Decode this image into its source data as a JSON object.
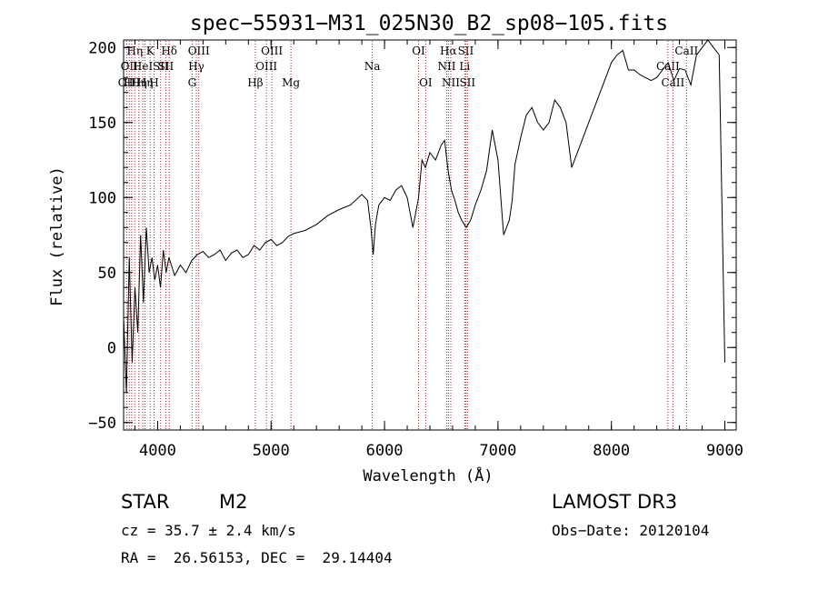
{
  "chart_data": {
    "type": "line",
    "title": "spec−55931−M31_025N30_B2_sp08−105.fits",
    "xlabel": "Wavelength (Å)",
    "ylabel": "Flux (relative)",
    "xlim": [
      3700,
      9100
    ],
    "ylim": [
      -55,
      205
    ],
    "xticks": [
      4000,
      5000,
      6000,
      7000,
      8000,
      9000
    ],
    "yticks": [
      -50,
      0,
      50,
      100,
      150,
      200
    ],
    "ytick_labels": [
      "−50",
      "0",
      "50",
      "100",
      "150",
      "200"
    ],
    "grid": false,
    "series": [
      {
        "name": "spectrum",
        "x": [
          3700,
          3725,
          3750,
          3775,
          3800,
          3825,
          3850,
          3875,
          3900,
          3925,
          3950,
          3975,
          4000,
          4025,
          4050,
          4075,
          4100,
          4150,
          4200,
          4250,
          4300,
          4350,
          4400,
          4450,
          4500,
          4550,
          4600,
          4650,
          4700,
          4750,
          4800,
          4850,
          4900,
          4950,
          5000,
          5050,
          5100,
          5150,
          5200,
          5300,
          5400,
          5500,
          5600,
          5700,
          5800,
          5850,
          5880,
          5900,
          5920,
          5950,
          6000,
          6050,
          6100,
          6150,
          6200,
          6250,
          6300,
          6330,
          6360,
          6400,
          6450,
          6500,
          6530,
          6560,
          6590,
          6620,
          6650,
          6680,
          6720,
          6760,
          6800,
          6850,
          6900,
          6950,
          7000,
          7050,
          7100,
          7125,
          7150,
          7200,
          7250,
          7300,
          7350,
          7400,
          7450,
          7500,
          7550,
          7600,
          7650,
          7700,
          7750,
          7800,
          7850,
          7900,
          7950,
          8000,
          8050,
          8100,
          8150,
          8200,
          8250,
          8300,
          8350,
          8400,
          8450,
          8500,
          8550,
          8600,
          8650,
          8700,
          8750,
          8800,
          8850,
          8900,
          8950,
          9000
        ],
        "y": [
          20,
          -30,
          60,
          -10,
          40,
          10,
          75,
          30,
          80,
          50,
          60,
          45,
          55,
          40,
          65,
          50,
          60,
          48,
          55,
          50,
          58,
          62,
          64,
          60,
          62,
          65,
          58,
          63,
          65,
          60,
          62,
          68,
          65,
          70,
          72,
          68,
          70,
          74,
          76,
          78,
          82,
          88,
          92,
          95,
          102,
          98,
          80,
          62,
          82,
          95,
          100,
          98,
          105,
          108,
          100,
          80,
          100,
          125,
          120,
          130,
          125,
          135,
          138,
          118,
          105,
          98,
          90,
          85,
          80,
          85,
          95,
          105,
          118,
          145,
          125,
          75,
          85,
          98,
          122,
          140,
          155,
          160,
          150,
          145,
          150,
          165,
          160,
          150,
          120,
          130,
          140,
          150,
          160,
          170,
          180,
          190,
          195,
          198,
          185,
          185,
          182,
          180,
          178,
          180,
          185,
          190,
          178,
          186,
          185,
          175,
          195,
          200,
          205,
          200,
          195,
          -10
        ]
      }
    ],
    "lines": [
      {
        "wavelength": 3727,
        "row": 2,
        "label": "OII"
      },
      {
        "wavelength": 3750,
        "row": 1,
        "label": "OII"
      },
      {
        "wavelength": 3771,
        "row": 3,
        "label": "Hθ"
      },
      {
        "wavelength": 3798,
        "row": 0,
        "label": "Hη"
      },
      {
        "wavelength": 3835,
        "row": 3,
        "label": "Hη"
      },
      {
        "wavelength": 3869,
        "row": 1,
        "label": "HeI"
      },
      {
        "wavelength": 3889,
        "row": 2,
        "label": "Hη"
      },
      {
        "wavelength": 3934,
        "row": 0,
        "label": "K"
      },
      {
        "wavelength": 3969,
        "row": 2,
        "label": "H"
      },
      {
        "wavelength": 4026,
        "row": 1,
        "label": "SII"
      },
      {
        "wavelength": 4072,
        "row": 1,
        "label": "SII"
      },
      {
        "wavelength": 4102,
        "row": 0,
        "label": "Hδ"
      },
      {
        "wavelength": 4304,
        "row": 2,
        "label": "G"
      },
      {
        "wavelength": 4341,
        "row": 1,
        "label": "Hγ"
      },
      {
        "wavelength": 4363,
        "row": 0,
        "label": "OIII"
      },
      {
        "wavelength": 4861,
        "row": 2,
        "label": "Hβ"
      },
      {
        "wavelength": 4959,
        "row": 1,
        "label": "OIII"
      },
      {
        "wavelength": 5007,
        "row": 0,
        "label": "OIII"
      },
      {
        "wavelength": 5175,
        "row": 2,
        "label": "Mg"
      },
      {
        "wavelength": 5892,
        "row": 1,
        "label": "Na"
      },
      {
        "wavelength": 6300,
        "row": 0,
        "label": "OI"
      },
      {
        "wavelength": 6363,
        "row": 2,
        "label": "OI"
      },
      {
        "wavelength": 6548,
        "row": 1,
        "label": "NII"
      },
      {
        "wavelength": 6563,
        "row": 0,
        "label": "Hα"
      },
      {
        "wavelength": 6584,
        "row": 2,
        "label": "NII"
      },
      {
        "wavelength": 6707,
        "row": 1,
        "label": "Li"
      },
      {
        "wavelength": 6716,
        "row": 0,
        "label": "SII"
      },
      {
        "wavelength": 6731,
        "row": 2,
        "label": "SII"
      },
      {
        "wavelength": 8498,
        "row": 1,
        "label": "CaII"
      },
      {
        "wavelength": 8542,
        "row": 2,
        "label": "CaII"
      },
      {
        "wavelength": 8662,
        "row": 0,
        "label": "CaII"
      }
    ]
  },
  "info": {
    "object_type": "STAR",
    "subclass": "M2",
    "survey": "LAMOST DR3",
    "cz": "cz = 35.7 ± 2.4 km/s",
    "obs_date": "Obs−Date: 20120104",
    "radec": "RA =  26.56153, DEC =  29.14404"
  }
}
